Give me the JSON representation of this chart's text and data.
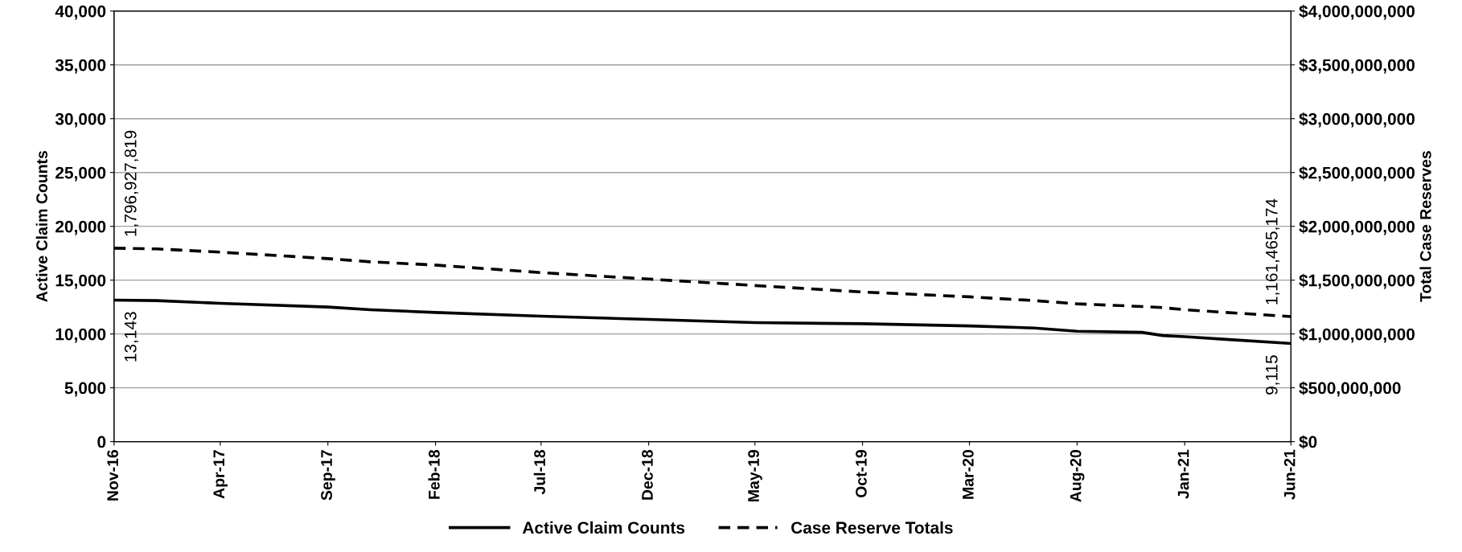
{
  "chart_data": {
    "type": "line",
    "ylabel": "Active Claim Counts",
    "y2label": "Total Case Reserves",
    "x": [
      "2016-11",
      "2017-01",
      "2017-04",
      "2017-09",
      "2017-11",
      "2018-02",
      "2018-07",
      "2018-12",
      "2019-05",
      "2019-10",
      "2020-03",
      "2020-06",
      "2020-08",
      "2020-11",
      "2020-12",
      "2021-01",
      "2021-03",
      "2021-06"
    ],
    "series": [
      {
        "name": "Active Claim Counts",
        "color": "#000000",
        "line_style": "solid",
        "values": [
          13143,
          13100,
          12850,
          12500,
          12250,
          12000,
          11650,
          11350,
          11050,
          10950,
          10750,
          10550,
          10250,
          10150,
          9850,
          9750,
          9500,
          9115
        ],
        "value_labels": [
          "13,143",
          null,
          null,
          null,
          null,
          null,
          null,
          null,
          null,
          null,
          null,
          null,
          null,
          null,
          null,
          null,
          null,
          "9,115"
        ]
      },
      {
        "name": "Case Reserve Totals",
        "color": "#000000",
        "line_style": "dashed",
        "axis": "y2",
        "values": [
          1796927819,
          1790000000,
          1760000000,
          1700000000,
          1670000000,
          1640000000,
          1570000000,
          1510000000,
          1450000000,
          1390000000,
          1345000000,
          1310000000,
          1280000000,
          1255000000,
          1245000000,
          1225000000,
          1200000000,
          1161465174
        ],
        "value_labels": [
          "1,796,927,819",
          null,
          null,
          null,
          null,
          null,
          null,
          null,
          null,
          null,
          null,
          null,
          null,
          null,
          null,
          null,
          null,
          "1,161,465,174"
        ]
      }
    ],
    "xlim": [
      "2016-11",
      "2021-06"
    ],
    "xticks": [
      {
        "value": "2016-11",
        "label": "Nov-16"
      },
      {
        "value": "2017-04",
        "label": "Apr-17"
      },
      {
        "value": "2017-09",
        "label": "Sep-17"
      },
      {
        "value": "2018-02",
        "label": "Feb-18"
      },
      {
        "value": "2018-07",
        "label": "Jul-18"
      },
      {
        "value": "2018-12",
        "label": "Dec-18"
      },
      {
        "value": "2019-05",
        "label": "May-19"
      },
      {
        "value": "2019-10",
        "label": "Oct-19"
      },
      {
        "value": "2020-03",
        "label": "Mar-20"
      },
      {
        "value": "2020-08",
        "label": "Aug-20"
      },
      {
        "value": "2021-01",
        "label": "Jan-21"
      },
      {
        "value": "2021-06",
        "label": "Jun-21"
      }
    ],
    "ylim": [
      0,
      40000
    ],
    "yticks": [
      {
        "value": 0,
        "label": "0"
      },
      {
        "value": 5000,
        "label": "5,000"
      },
      {
        "value": 10000,
        "label": "10,000"
      },
      {
        "value": 15000,
        "label": "15,000"
      },
      {
        "value": 20000,
        "label": "20,000"
      },
      {
        "value": 25000,
        "label": "25,000"
      },
      {
        "value": 30000,
        "label": "30,000"
      },
      {
        "value": 35000,
        "label": "35,000"
      },
      {
        "value": 40000,
        "label": "40,000"
      }
    ],
    "y2lim": [
      0,
      4000000000
    ],
    "y2ticks": [
      {
        "value": 0,
        "label": "$0"
      },
      {
        "value": 500000000,
        "label": "$500,000,000"
      },
      {
        "value": 1000000000,
        "label": "$1,000,000,000"
      },
      {
        "value": 1500000000,
        "label": "$1,500,000,000"
      },
      {
        "value": 2000000000,
        "label": "$2,000,000,000"
      },
      {
        "value": 2500000000,
        "label": "$2,500,000,000"
      },
      {
        "value": 3000000000,
        "label": "$3,000,000,000"
      },
      {
        "value": 3500000000,
        "label": "$3,500,000,000"
      },
      {
        "value": 4000000000,
        "label": "$4,000,000,000"
      }
    ],
    "grid": "y",
    "legend": "bottom",
    "marker": "none"
  }
}
